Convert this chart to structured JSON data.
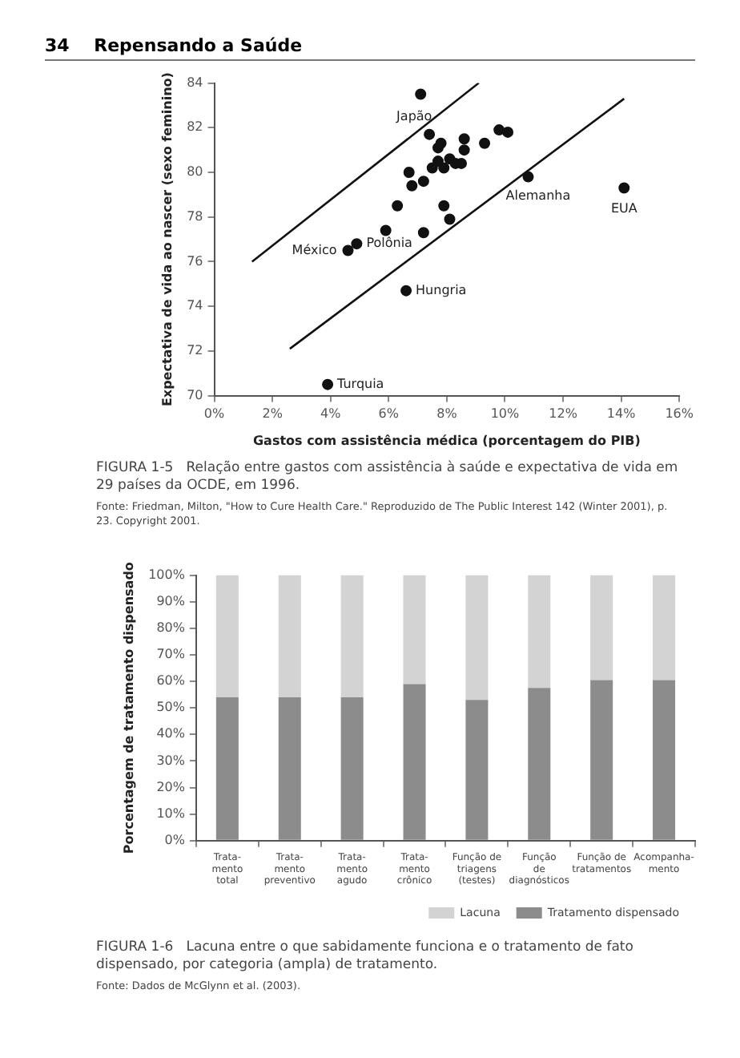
{
  "chart_data": [
    {
      "type": "scatter",
      "xlabel": "Gastos com assistência médica (porcentagem do PIB)",
      "ylabel": "Expectativa de vida ao nascer (sexo feminino)",
      "xlim": [
        0,
        16
      ],
      "xticks": [
        {
          "value": 0,
          "label": "0%"
        },
        {
          "value": 2,
          "label": "2%"
        },
        {
          "value": 4,
          "label": "4%"
        },
        {
          "value": 6,
          "label": "6%"
        },
        {
          "value": 8,
          "label": "8%"
        },
        {
          "value": 10,
          "label": "10%"
        },
        {
          "value": 12,
          "label": "12%"
        },
        {
          "value": 14,
          "label": "14%"
        },
        {
          "value": 16,
          "label": "16%"
        }
      ],
      "ylim": [
        70,
        84
      ],
      "yticks": [
        70,
        72,
        74,
        76,
        78,
        80,
        82,
        84
      ],
      "grid": false,
      "legend": false,
      "series": [
        {
          "type": "scatter",
          "marker": "circle",
          "color": "#111111",
          "x": [
            7.1,
            7.4,
            7.8,
            7.7,
            8.6,
            8.6,
            9.3,
            9.8,
            10.1,
            8.1,
            7.7,
            8.3,
            8.5,
            7.5,
            7.9,
            6.7,
            6.8,
            7.2,
            10.8,
            14.1,
            6.3,
            7.9,
            8.1,
            5.9,
            7.2,
            4.9,
            4.6,
            6.6,
            3.9
          ],
          "values": [
            83.5,
            81.7,
            81.3,
            81.1,
            81.5,
            81.0,
            81.3,
            81.9,
            81.8,
            80.6,
            80.5,
            80.4,
            80.4,
            80.2,
            80.2,
            80.0,
            79.4,
            79.6,
            79.8,
            79.3,
            78.5,
            78.5,
            77.9,
            77.4,
            77.3,
            76.8,
            76.5,
            74.7,
            70.5
          ]
        },
        {
          "type": "line",
          "marker": "none",
          "color": "#111111",
          "x": [
            1.3,
            9.1
          ],
          "values": [
            76.0,
            84.0
          ]
        },
        {
          "type": "line",
          "marker": "none",
          "color": "#111111",
          "x": [
            2.6,
            14.1
          ],
          "values": [
            72.1,
            83.3
          ]
        }
      ],
      "annotations": [
        "34    Repensando a Saúde",
        "FIGURA 1-5   Relação entre gastos com assistência à saúde e expectativa de vida em 29 países da OCDE, em 1996.",
        "Fonte: Friedman, Milton, \"How to Cure Health Care.\" Reproduzido de The Public Interest 142 (Winter 2001), p. 23. Copyright 2001.",
        {
          "text": "Japão",
          "x": 7.1,
          "y": 83.5
        },
        {
          "text": "México",
          "x": 4.6,
          "y": 76.5
        },
        {
          "text": "Polônia",
          "x": 4.9,
          "y": 76.8
        },
        {
          "text": "Alemanha",
          "x": 10.8,
          "y": 79.8
        },
        {
          "text": "EUA",
          "x": 14.1,
          "y": 79.3
        },
        {
          "text": "Hungria",
          "x": 6.6,
          "y": 74.7
        },
        {
          "text": "Turquia",
          "x": 3.9,
          "y": 70.5
        }
      ]
    },
    {
      "type": "bar",
      "stacked": true,
      "ylabel": "Porcentagem de tratamento dispensado",
      "categories": [
        "Trata-\nmento\ntotal",
        "Trata-\nmento\npreventivo",
        "Trata-\nmento\nagudo",
        "Trata-\nmento\ncrônico",
        "Função de\ntriagens\n(testes)",
        "Função\nde\ndiagnósticos",
        "Função de\ntratamentos",
        "Acompanha-\nmento"
      ],
      "ylim": [
        0,
        100
      ],
      "yticks": [
        {
          "value": 0,
          "label": "0%"
        },
        {
          "value": 10,
          "label": "10%"
        },
        {
          "value": 20,
          "label": "20%"
        },
        {
          "value": 30,
          "label": "30%"
        },
        {
          "value": 40,
          "label": "40%"
        },
        {
          "value": 50,
          "label": "50%"
        },
        {
          "value": 60,
          "label": "60%"
        },
        {
          "value": 70,
          "label": "70%"
        },
        {
          "value": 80,
          "label": "80%"
        },
        {
          "value": 90,
          "label": "90%"
        },
        {
          "value": 100,
          "label": "100%"
        }
      ],
      "grid": false,
      "legend": "bottom right",
      "series": [
        {
          "name": "Tratamento dispensado",
          "color": "#8c8c8c",
          "values": [
            54,
            54,
            54,
            59,
            53,
            57.5,
            60.5,
            60.5
          ]
        },
        {
          "name": "Lacuna",
          "color": "#d3d3d3",
          "values": [
            46,
            46,
            46,
            41,
            47,
            42.5,
            39.5,
            39.5
          ]
        }
      ],
      "annotations": [
        "FIGURA 1-6   Lacuna entre o que sabidamente funciona e o tratamento de fato dispensado, por categoria (ampla) de tratamento.",
        "Fonte: Dados de McGlynn et al. (2003)."
      ]
    }
  ]
}
